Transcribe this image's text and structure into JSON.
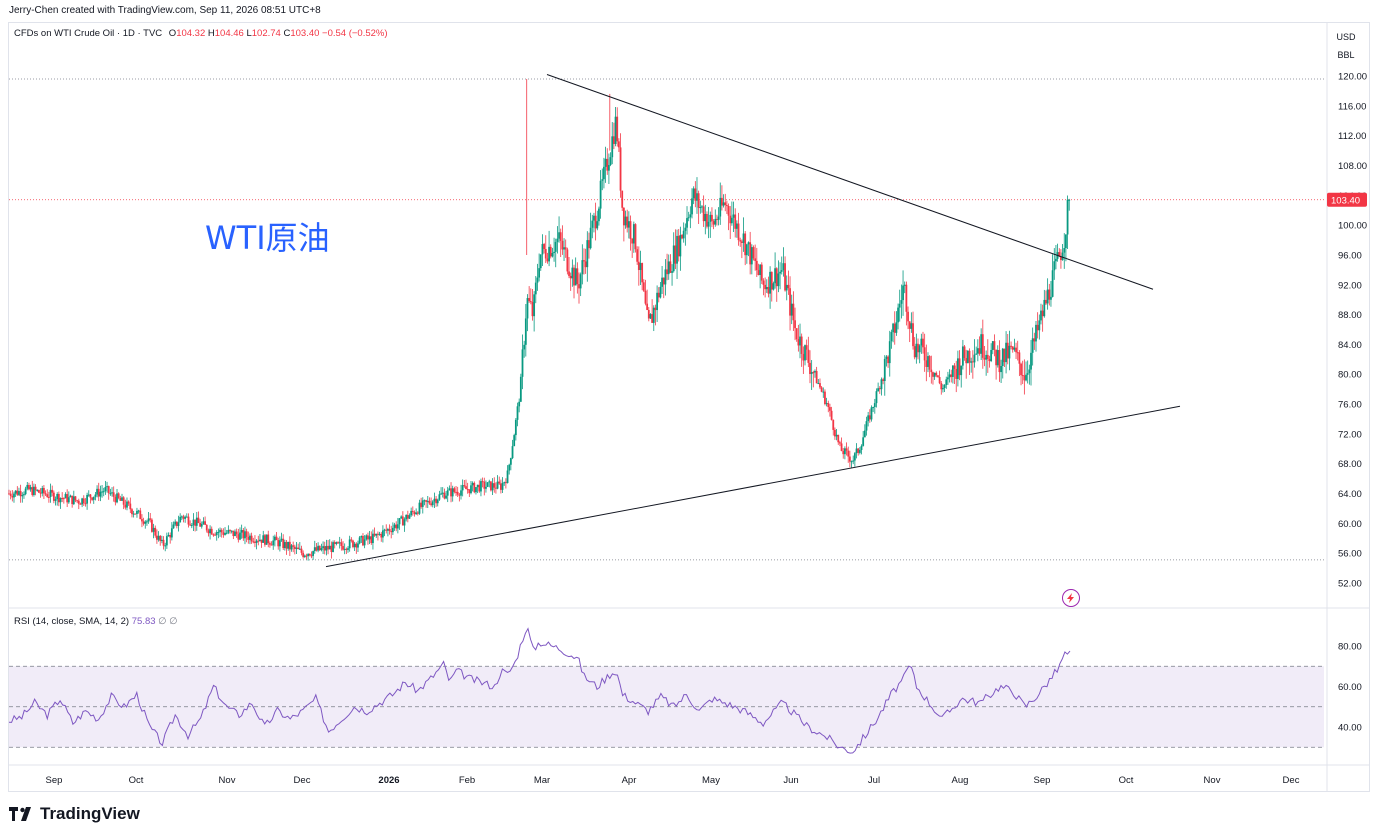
{
  "header": {
    "creator": "Jerry-Chen created with TradingView.com, Sep 11, 2026 08:51 UTC+8"
  },
  "legend": {
    "symbol": "CFDs on WTI Crude Oil · 1D · TVC",
    "open_label": "O",
    "open": "104.32",
    "high_label": "H",
    "high": "104.46",
    "low_label": "L",
    "low": "102.74",
    "close_label": "C",
    "close": "103.40",
    "change": "−0.54 (−0.52%)"
  },
  "currency": {
    "unit": "USD",
    "sub_unit": "BBL"
  },
  "annotation": "WTI原油",
  "rsi": {
    "label": "RSI (14, close, SMA, 14, 2)",
    "value": "75.83",
    "extra1": "∅",
    "extra2": "∅"
  },
  "brand": "TradingView",
  "colors": {
    "up": "#089981",
    "down": "#f23645",
    "rsi_line": "#7e57c2",
    "rsi_band": "#ede7f6",
    "annotation": "#2962ff"
  },
  "chart_data": {
    "type": "candlestick",
    "price_axis_ticks": [
      52,
      56,
      60,
      64,
      68,
      72,
      76,
      80,
      84,
      88,
      92,
      96,
      100,
      104,
      108,
      112,
      116,
      120
    ],
    "price_axis_labels": [
      "52.00",
      "56.00",
      "60.00",
      "64.00",
      "68.00",
      "72.00",
      "76.00",
      "80.00",
      "84.00",
      "88.00",
      "92.00",
      "96.00",
      "100.00",
      "104.00",
      "108.00",
      "112.00",
      "116.00",
      "120.00"
    ],
    "last_price_label": "103.40",
    "last_price": 103.4,
    "ylim": [
      49,
      123
    ],
    "time_axis_labels": [
      "Sep",
      "Oct",
      "Nov",
      "Dec",
      "2026",
      "Feb",
      "Mar",
      "Apr",
      "May",
      "Jun",
      "Jul",
      "Aug",
      "Sep",
      "Oct",
      "Nov",
      "Dec"
    ],
    "reference_lines": [
      119.6,
      55.1
    ],
    "price_anchors": [
      [
        0,
        64
      ],
      [
        16,
        64.5
      ],
      [
        40,
        63.5
      ],
      [
        55,
        63
      ],
      [
        75,
        64.5
      ],
      [
        95,
        62
      ],
      [
        110,
        60
      ],
      [
        120,
        57
      ],
      [
        135,
        61
      ],
      [
        160,
        59
      ],
      [
        180,
        58.5
      ],
      [
        210,
        57.5
      ],
      [
        230,
        56
      ],
      [
        260,
        57
      ],
      [
        285,
        58
      ],
      [
        305,
        60
      ],
      [
        320,
        62
      ],
      [
        340,
        64
      ],
      [
        370,
        65
      ],
      [
        385,
        65
      ],
      [
        390,
        66.5
      ],
      [
        396,
        73
      ],
      [
        400,
        78
      ],
      [
        405,
        90
      ],
      [
        410,
        88
      ],
      [
        415,
        96
      ],
      [
        430,
        98
      ],
      [
        445,
        92
      ],
      [
        460,
        102
      ],
      [
        470,
        110
      ],
      [
        475,
        114
      ],
      [
        480,
        102
      ],
      [
        490,
        98
      ],
      [
        500,
        86
      ],
      [
        510,
        92
      ],
      [
        525,
        98
      ],
      [
        535,
        104
      ],
      [
        550,
        100
      ],
      [
        560,
        103
      ],
      [
        575,
        98
      ],
      [
        590,
        92
      ],
      [
        605,
        94
      ],
      [
        615,
        86
      ],
      [
        625,
        82
      ],
      [
        640,
        76
      ],
      [
        650,
        70
      ],
      [
        660,
        68.5
      ],
      [
        665,
        70
      ],
      [
        680,
        78
      ],
      [
        690,
        84
      ],
      [
        700,
        92
      ],
      [
        708,
        84
      ],
      [
        720,
        82
      ],
      [
        730,
        78
      ],
      [
        745,
        82
      ],
      [
        760,
        84
      ],
      [
        775,
        82
      ],
      [
        785,
        83
      ],
      [
        795,
        80
      ],
      [
        805,
        86
      ],
      [
        815,
        92
      ],
      [
        822,
        96
      ],
      [
        825,
        98
      ],
      [
        830,
        103.4
      ]
    ],
    "trendlines": [
      {
        "from": [
          "Mar",
          120.2
        ],
        "to": [
          "Oct",
          91.4
        ],
        "label": ""
      },
      {
        "from": [
          "Dec",
          54.2
        ],
        "to": [
          "Oct",
          75.7
        ],
        "label": ""
      }
    ],
    "rsi_panel": {
      "ticks": [
        40,
        60,
        80
      ],
      "tick_labels": [
        "40.00",
        "60.00",
        "80.00"
      ],
      "upper": 70,
      "middle": 50,
      "lower": 30,
      "ylim": [
        24,
        92
      ],
      "rsi_anchors": [
        [
          0,
          43
        ],
        [
          10,
          45
        ],
        [
          20,
          52
        ],
        [
          30,
          46
        ],
        [
          40,
          54
        ],
        [
          50,
          42
        ],
        [
          60,
          48
        ],
        [
          70,
          44
        ],
        [
          80,
          55
        ],
        [
          90,
          50
        ],
        [
          100,
          56
        ],
        [
          110,
          40
        ],
        [
          120,
          32
        ],
        [
          130,
          46
        ],
        [
          140,
          36
        ],
        [
          150,
          44
        ],
        [
          160,
          60
        ],
        [
          170,
          50
        ],
        [
          180,
          46
        ],
        [
          190,
          52
        ],
        [
          200,
          40
        ],
        [
          210,
          48
        ],
        [
          220,
          44
        ],
        [
          230,
          48
        ],
        [
          240,
          54
        ],
        [
          250,
          38
        ],
        [
          260,
          44
        ],
        [
          270,
          50
        ],
        [
          280,
          48
        ],
        [
          290,
          52
        ],
        [
          300,
          56
        ],
        [
          310,
          62
        ],
        [
          320,
          58
        ],
        [
          330,
          64
        ],
        [
          340,
          71
        ],
        [
          345,
          62
        ],
        [
          350,
          68
        ],
        [
          360,
          64
        ],
        [
          370,
          62
        ],
        [
          380,
          60
        ],
        [
          385,
          68
        ],
        [
          390,
          66
        ],
        [
          396,
          72
        ],
        [
          400,
          80
        ],
        [
          405,
          90
        ],
        [
          410,
          78
        ],
        [
          415,
          82
        ],
        [
          430,
          79
        ],
        [
          445,
          74
        ],
        [
          450,
          65
        ],
        [
          460,
          60
        ],
        [
          470,
          66
        ],
        [
          475,
          68
        ],
        [
          480,
          56
        ],
        [
          490,
          52
        ],
        [
          500,
          48
        ],
        [
          510,
          55
        ],
        [
          520,
          50
        ],
        [
          530,
          56
        ],
        [
          540,
          48
        ],
        [
          550,
          54
        ],
        [
          560,
          52
        ],
        [
          575,
          48
        ],
        [
          590,
          42
        ],
        [
          605,
          52
        ],
        [
          615,
          46
        ],
        [
          625,
          40
        ],
        [
          640,
          35
        ],
        [
          650,
          30
        ],
        [
          660,
          28
        ],
        [
          670,
          36
        ],
        [
          680,
          45
        ],
        [
          690,
          56
        ],
        [
          700,
          64
        ],
        [
          705,
          71
        ],
        [
          710,
          60
        ],
        [
          720,
          52
        ],
        [
          730,
          44
        ],
        [
          745,
          54
        ],
        [
          760,
          52
        ],
        [
          775,
          60
        ],
        [
          785,
          58
        ],
        [
          795,
          50
        ],
        [
          805,
          56
        ],
        [
          815,
          64
        ],
        [
          822,
          70
        ],
        [
          825,
          76
        ],
        [
          830,
          76
        ]
      ]
    }
  }
}
